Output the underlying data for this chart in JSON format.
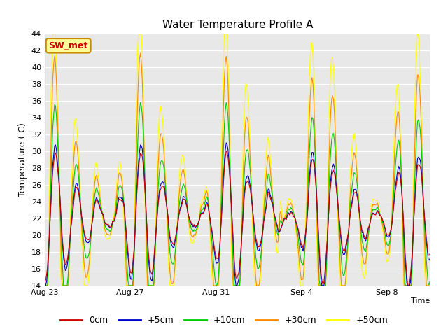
{
  "title": "Water Temperature Profile A",
  "xlabel": "Time",
  "ylabel": "Temperature ( C)",
  "ylim": [
    14,
    44
  ],
  "yticks": [
    14,
    16,
    18,
    20,
    22,
    24,
    26,
    28,
    30,
    32,
    34,
    36,
    38,
    40,
    42,
    44
  ],
  "plot_bg_color": "#e8e8e8",
  "line_colors": {
    "0cm": "#cc0000",
    "+5cm": "#0000cc",
    "+10cm": "#00cc00",
    "+30cm": "#ff8800",
    "+50cm": "#ffff00"
  },
  "annotation_text": "SW_met",
  "annotation_color": "#cc0000",
  "annotation_bg": "#ffff99",
  "annotation_border": "#cc8800",
  "x_tick_labels": [
    "Aug 23",
    "Aug 27",
    "Aug 31",
    "Sep 4",
    "Sep 8"
  ],
  "x_tick_positions": [
    0,
    4,
    8,
    12,
    16
  ]
}
